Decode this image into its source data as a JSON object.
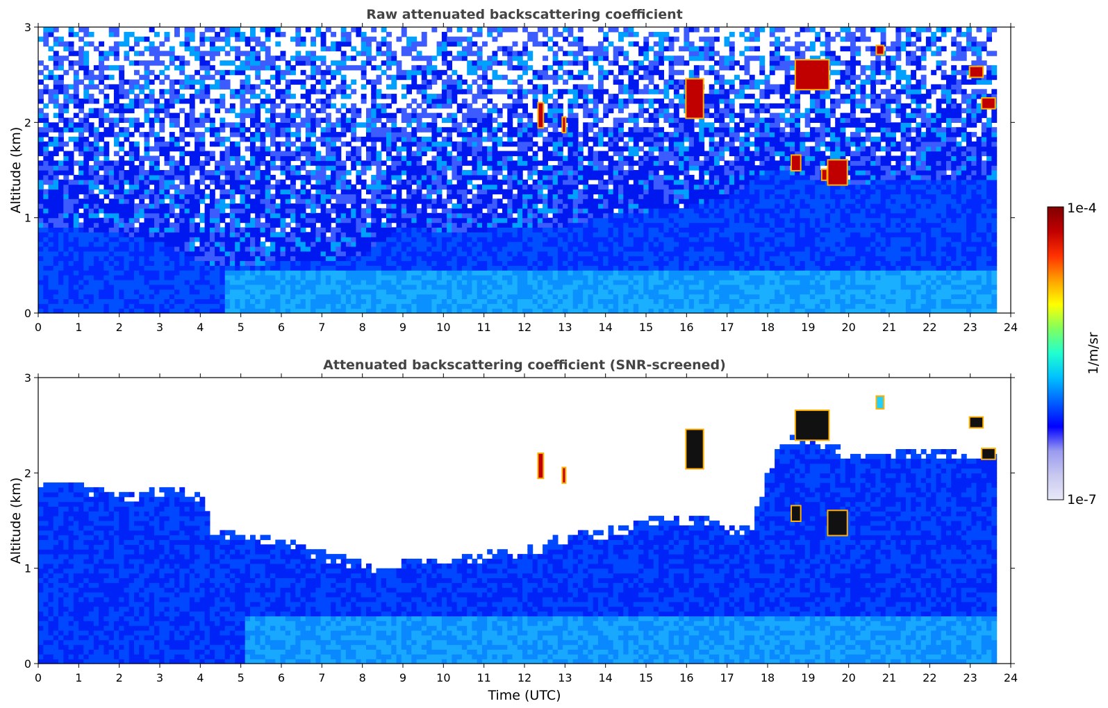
{
  "chart_data": [
    {
      "type": "heatmap",
      "title": "Raw attenuated backscattering coefficient",
      "xlabel": "",
      "ylabel": "Altitude (km)",
      "xlim": [
        0,
        24
      ],
      "ylim": [
        0,
        3
      ],
      "xticks": [
        "0",
        "1",
        "2",
        "3",
        "4",
        "5",
        "6",
        "7",
        "8",
        "9",
        "10",
        "11",
        "12",
        "13",
        "14",
        "15",
        "16",
        "17",
        "18",
        "19",
        "20",
        "21",
        "22",
        "23",
        "24"
      ],
      "yticks": [
        "0",
        "1",
        "2",
        "3"
      ],
      "data_end_time": 23.65,
      "boundary_layer_top_km": [
        [
          0,
          0.9
        ],
        [
          1,
          0.85
        ],
        [
          2,
          0.8
        ],
        [
          3,
          0.7
        ],
        [
          4,
          0.5
        ],
        [
          5,
          0.45
        ],
        [
          6,
          0.55
        ],
        [
          7,
          0.5
        ],
        [
          8,
          0.6
        ],
        [
          9,
          0.9
        ],
        [
          10,
          0.8
        ],
        [
          11,
          0.85
        ],
        [
          12,
          0.9
        ],
        [
          13,
          0.9
        ],
        [
          14,
          1.0
        ],
        [
          15,
          1.05
        ],
        [
          16,
          1.1
        ],
        [
          17,
          1.2
        ],
        [
          18,
          1.5
        ],
        [
          19,
          1.4
        ],
        [
          20,
          1.3
        ],
        [
          21,
          1.4
        ],
        [
          22,
          1.4
        ],
        [
          23,
          1.4
        ],
        [
          23.65,
          1.4
        ]
      ],
      "cloud_features": [
        {
          "t_start": 12.35,
          "t_end": 12.45,
          "base_km": 1.95,
          "top_km": 2.2,
          "level": "high"
        },
        {
          "t_start": 12.95,
          "t_end": 13.0,
          "base_km": 1.9,
          "top_km": 2.05,
          "level": "high"
        },
        {
          "t_start": 16.0,
          "t_end": 16.4,
          "base_km": 2.05,
          "top_km": 2.45,
          "level": "high"
        },
        {
          "t_start": 18.6,
          "t_end": 18.8,
          "base_km": 1.5,
          "top_km": 1.65,
          "level": "high"
        },
        {
          "t_start": 18.7,
          "t_end": 19.5,
          "base_km": 2.35,
          "top_km": 2.65,
          "level": "high"
        },
        {
          "t_start": 19.35,
          "t_end": 19.45,
          "base_km": 1.4,
          "top_km": 1.5,
          "level": "high"
        },
        {
          "t_start": 19.5,
          "t_end": 19.95,
          "base_km": 1.35,
          "top_km": 1.6,
          "level": "high"
        },
        {
          "t_start": 20.7,
          "t_end": 20.85,
          "base_km": 2.72,
          "top_km": 2.8,
          "level": "high"
        },
        {
          "t_start": 23.0,
          "t_end": 23.3,
          "base_km": 2.48,
          "top_km": 2.58,
          "level": "high"
        },
        {
          "t_start": 23.3,
          "t_end": 23.6,
          "base_km": 2.15,
          "top_km": 2.25,
          "level": "high"
        }
      ]
    },
    {
      "type": "heatmap",
      "title": "Attenuated backscattering coefficient (SNR-screened)",
      "xlabel": "Time (UTC)",
      "ylabel": "Altitude (km)",
      "xlim": [
        0,
        24
      ],
      "ylim": [
        0,
        3
      ],
      "xticks": [
        "0",
        "1",
        "2",
        "3",
        "4",
        "5",
        "6",
        "7",
        "8",
        "9",
        "10",
        "11",
        "12",
        "13",
        "14",
        "15",
        "16",
        "17",
        "18",
        "19",
        "20",
        "21",
        "22",
        "23",
        "24"
      ],
      "yticks": [
        "0",
        "1",
        "2",
        "3"
      ],
      "data_end_time": 23.65,
      "screen_top_km": [
        [
          0,
          1.9
        ],
        [
          1,
          1.85
        ],
        [
          2,
          1.75
        ],
        [
          3,
          1.85
        ],
        [
          4,
          1.75
        ],
        [
          4.2,
          1.4
        ],
        [
          5,
          1.35
        ],
        [
          6,
          1.3
        ],
        [
          6.5,
          1.2
        ],
        [
          7,
          1.15
        ],
        [
          8,
          1.05
        ],
        [
          8.5,
          0.95
        ],
        [
          9,
          1.1
        ],
        [
          10,
          1.1
        ],
        [
          11,
          1.15
        ],
        [
          12,
          1.2
        ],
        [
          13,
          1.35
        ],
        [
          14,
          1.4
        ],
        [
          15,
          1.5
        ],
        [
          16,
          1.55
        ],
        [
          17,
          1.45
        ],
        [
          17.5,
          1.4
        ],
        [
          18,
          2.1
        ],
        [
          18.5,
          2.4
        ],
        [
          19,
          2.4
        ],
        [
          20,
          2.2
        ],
        [
          21,
          2.2
        ],
        [
          22,
          2.25
        ],
        [
          23,
          2.2
        ],
        [
          23.65,
          2.2
        ]
      ],
      "cloud_features": [
        {
          "t_start": 12.35,
          "t_end": 12.45,
          "base_km": 1.95,
          "top_km": 2.2,
          "level": "high"
        },
        {
          "t_start": 12.95,
          "t_end": 13.0,
          "base_km": 1.9,
          "top_km": 2.05,
          "level": "high"
        },
        {
          "t_start": 16.0,
          "t_end": 16.4,
          "base_km": 2.05,
          "top_km": 2.45,
          "level": "saturated"
        },
        {
          "t_start": 18.6,
          "t_end": 18.8,
          "base_km": 1.5,
          "top_km": 1.65,
          "level": "saturated"
        },
        {
          "t_start": 18.7,
          "t_end": 19.5,
          "base_km": 2.35,
          "top_km": 2.65,
          "level": "saturated"
        },
        {
          "t_start": 19.5,
          "t_end": 19.95,
          "base_km": 1.35,
          "top_km": 1.6,
          "level": "saturated"
        },
        {
          "t_start": 20.7,
          "t_end": 20.85,
          "base_km": 2.68,
          "top_km": 2.8,
          "level": "mid"
        },
        {
          "t_start": 23.0,
          "t_end": 23.3,
          "base_km": 2.48,
          "top_km": 2.58,
          "level": "saturated"
        },
        {
          "t_start": 23.3,
          "t_end": 23.6,
          "base_km": 2.15,
          "top_km": 2.25,
          "level": "saturated"
        }
      ]
    }
  ],
  "colorbar": {
    "label": "1/m/sr",
    "max_label": "1e-4",
    "min_label": "1e-7",
    "scale": "log",
    "colormap": "jet",
    "colors": [
      "#e8e8f8",
      "#c8c8f0",
      "#9a9af0",
      "#0000ff",
      "#0060ff",
      "#00c0ff",
      "#20ffd0",
      "#80ff60",
      "#ffff00",
      "#ffa000",
      "#ff3000",
      "#c00000",
      "#800000"
    ]
  }
}
